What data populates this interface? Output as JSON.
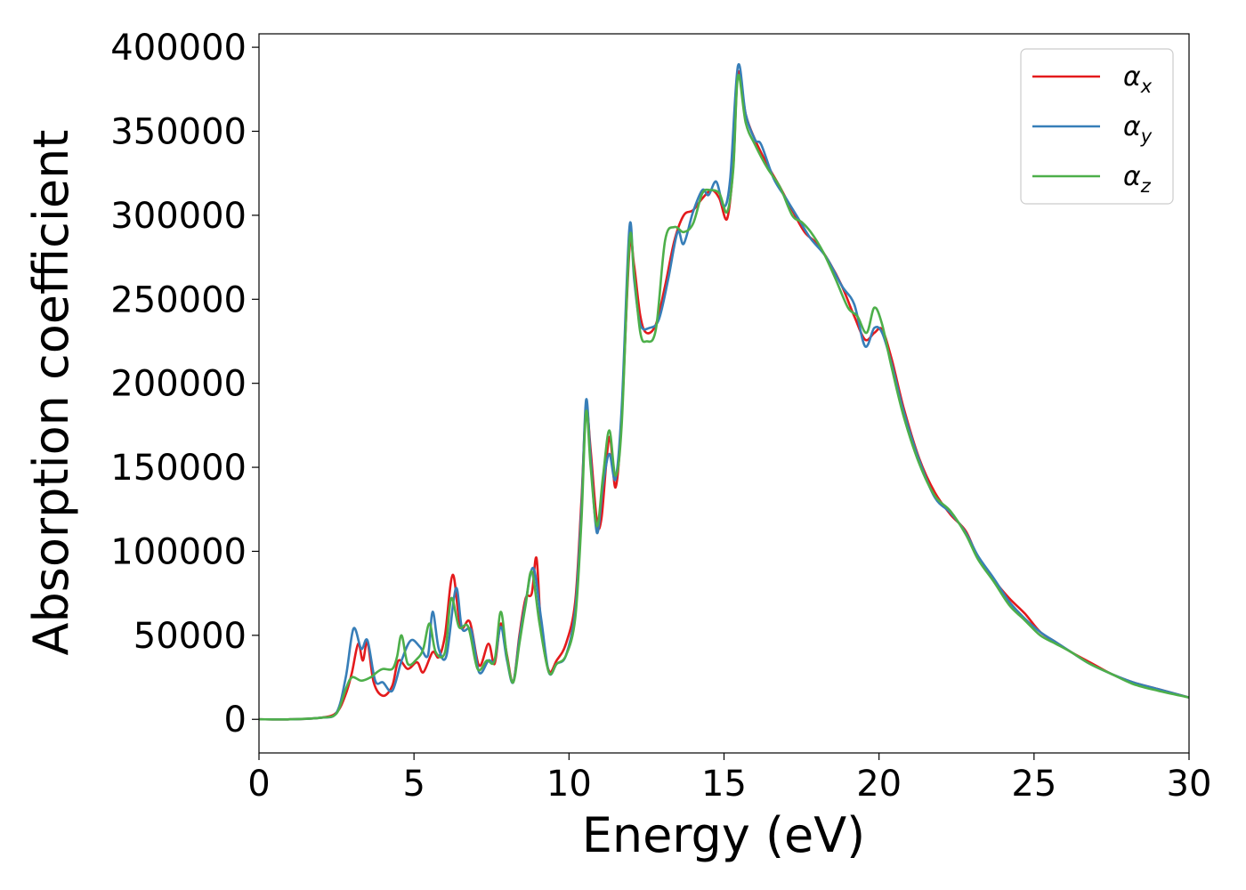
{
  "chart_data": {
    "type": "line",
    "title": "",
    "xlabel": "Energy (eV)",
    "ylabel": "Absorption coefficient",
    "xlim": [
      0,
      30
    ],
    "ylim": [
      -20000,
      408000
    ],
    "xticks": [
      0,
      5,
      10,
      15,
      20,
      25,
      30
    ],
    "yticks": [
      0,
      50000,
      100000,
      150000,
      200000,
      250000,
      300000,
      350000,
      400000
    ],
    "xtick_labels": [
      "0",
      "5",
      "10",
      "15",
      "20",
      "25",
      "30"
    ],
    "ytick_labels": [
      "0",
      "50000",
      "100000",
      "150000",
      "200000",
      "250000",
      "300000",
      "350000",
      "400000"
    ],
    "grid": false,
    "legend_position": "top-right",
    "series": [
      {
        "name": "α_x",
        "legend_symbol": "α",
        "legend_sub": "x",
        "color": "#e41a1c",
        "points": [
          [
            0,
            0
          ],
          [
            1,
            0
          ],
          [
            2,
            1000
          ],
          [
            2.5,
            4000
          ],
          [
            2.8,
            15000
          ],
          [
            3.0,
            28000
          ],
          [
            3.2,
            45000
          ],
          [
            3.35,
            35000
          ],
          [
            3.5,
            46000
          ],
          [
            3.7,
            22000
          ],
          [
            4.0,
            14000
          ],
          [
            4.3,
            20000
          ],
          [
            4.5,
            35000
          ],
          [
            4.8,
            30000
          ],
          [
            5.1,
            34000
          ],
          [
            5.3,
            28000
          ],
          [
            5.6,
            40000
          ],
          [
            5.8,
            37000
          ],
          [
            6.0,
            50000
          ],
          [
            6.25,
            86000
          ],
          [
            6.5,
            55000
          ],
          [
            6.8,
            58000
          ],
          [
            7.1,
            32000
          ],
          [
            7.4,
            45000
          ],
          [
            7.6,
            33000
          ],
          [
            7.8,
            57000
          ],
          [
            8.0,
            38000
          ],
          [
            8.2,
            22000
          ],
          [
            8.4,
            50000
          ],
          [
            8.6,
            72000
          ],
          [
            8.8,
            75000
          ],
          [
            8.95,
            96000
          ],
          [
            9.1,
            55000
          ],
          [
            9.35,
            29000
          ],
          [
            9.6,
            35000
          ],
          [
            9.9,
            45000
          ],
          [
            10.2,
            70000
          ],
          [
            10.4,
            130000
          ],
          [
            10.55,
            185000
          ],
          [
            10.7,
            160000
          ],
          [
            10.9,
            118000
          ],
          [
            11.05,
            120000
          ],
          [
            11.3,
            168000
          ],
          [
            11.5,
            138000
          ],
          [
            11.7,
            180000
          ],
          [
            11.95,
            280000
          ],
          [
            12.1,
            270000
          ],
          [
            12.3,
            240000
          ],
          [
            12.5,
            230000
          ],
          [
            12.8,
            235000
          ],
          [
            13.1,
            258000
          ],
          [
            13.4,
            285000
          ],
          [
            13.7,
            300000
          ],
          [
            14.0,
            303000
          ],
          [
            14.3,
            310000
          ],
          [
            14.6,
            315000
          ],
          [
            14.85,
            310000
          ],
          [
            15.1,
            298000
          ],
          [
            15.3,
            330000
          ],
          [
            15.45,
            385000
          ],
          [
            15.7,
            360000
          ],
          [
            16.0,
            345000
          ],
          [
            16.4,
            330000
          ],
          [
            16.8,
            317000
          ],
          [
            17.2,
            303000
          ],
          [
            17.6,
            290000
          ],
          [
            18.0,
            283000
          ],
          [
            18.4,
            272000
          ],
          [
            18.8,
            258000
          ],
          [
            19.2,
            240000
          ],
          [
            19.55,
            226000
          ],
          [
            19.85,
            230000
          ],
          [
            20.1,
            232000
          ],
          [
            20.4,
            215000
          ],
          [
            20.8,
            185000
          ],
          [
            21.3,
            155000
          ],
          [
            21.8,
            135000
          ],
          [
            22.3,
            122000
          ],
          [
            22.8,
            112000
          ],
          [
            23.2,
            96000
          ],
          [
            23.7,
            83000
          ],
          [
            24.2,
            72000
          ],
          [
            24.7,
            63000
          ],
          [
            25.2,
            52000
          ],
          [
            25.7,
            46000
          ],
          [
            26.2,
            40000
          ],
          [
            26.8,
            34000
          ],
          [
            27.5,
            27000
          ],
          [
            28.2,
            22000
          ],
          [
            29,
            18000
          ],
          [
            30,
            13000
          ]
        ]
      },
      {
        "name": "α_y",
        "legend_symbol": "α",
        "legend_sub": "y",
        "color": "#377eb8",
        "points": [
          [
            0,
            0
          ],
          [
            1,
            0
          ],
          [
            2,
            1000
          ],
          [
            2.5,
            4000
          ],
          [
            2.8,
            25000
          ],
          [
            3.05,
            54000
          ],
          [
            3.3,
            42000
          ],
          [
            3.5,
            47000
          ],
          [
            3.75,
            23000
          ],
          [
            4.0,
            22000
          ],
          [
            4.3,
            17000
          ],
          [
            4.6,
            35000
          ],
          [
            4.9,
            47000
          ],
          [
            5.2,
            43000
          ],
          [
            5.45,
            38000
          ],
          [
            5.6,
            64000
          ],
          [
            5.8,
            42000
          ],
          [
            6.05,
            38000
          ],
          [
            6.35,
            78000
          ],
          [
            6.55,
            54000
          ],
          [
            6.85,
            53000
          ],
          [
            7.1,
            28000
          ],
          [
            7.4,
            35000
          ],
          [
            7.6,
            35000
          ],
          [
            7.8,
            55000
          ],
          [
            8.0,
            35000
          ],
          [
            8.2,
            22000
          ],
          [
            8.4,
            48000
          ],
          [
            8.6,
            70000
          ],
          [
            8.85,
            90000
          ],
          [
            9.1,
            60000
          ],
          [
            9.35,
            28000
          ],
          [
            9.6,
            33000
          ],
          [
            9.9,
            38000
          ],
          [
            10.2,
            65000
          ],
          [
            10.4,
            125000
          ],
          [
            10.55,
            190000
          ],
          [
            10.7,
            155000
          ],
          [
            10.9,
            111000
          ],
          [
            11.1,
            140000
          ],
          [
            11.3,
            158000
          ],
          [
            11.5,
            143000
          ],
          [
            11.7,
            185000
          ],
          [
            11.95,
            293000
          ],
          [
            12.1,
            262000
          ],
          [
            12.3,
            235000
          ],
          [
            12.6,
            233000
          ],
          [
            12.9,
            238000
          ],
          [
            13.2,
            262000
          ],
          [
            13.5,
            290000
          ],
          [
            13.7,
            283000
          ],
          [
            14.0,
            302000
          ],
          [
            14.3,
            315000
          ],
          [
            14.5,
            312000
          ],
          [
            14.75,
            320000
          ],
          [
            15.0,
            305000
          ],
          [
            15.2,
            322000
          ],
          [
            15.45,
            389000
          ],
          [
            15.7,
            360000
          ],
          [
            16.0,
            345000
          ],
          [
            16.2,
            342000
          ],
          [
            16.6,
            322000
          ],
          [
            17.0,
            310000
          ],
          [
            17.4,
            298000
          ],
          [
            17.8,
            286000
          ],
          [
            18.3,
            275000
          ],
          [
            18.8,
            258000
          ],
          [
            19.2,
            247000
          ],
          [
            19.55,
            222000
          ],
          [
            19.85,
            233000
          ],
          [
            20.1,
            230000
          ],
          [
            20.4,
            212000
          ],
          [
            20.8,
            183000
          ],
          [
            21.3,
            154000
          ],
          [
            21.8,
            132000
          ],
          [
            22.3,
            123000
          ],
          [
            22.8,
            111000
          ],
          [
            23.2,
            97000
          ],
          [
            23.7,
            84000
          ],
          [
            24.2,
            70000
          ],
          [
            24.7,
            60000
          ],
          [
            25.2,
            52000
          ],
          [
            25.7,
            46000
          ],
          [
            26.2,
            40000
          ],
          [
            26.8,
            33000
          ],
          [
            27.5,
            27000
          ],
          [
            28.2,
            22000
          ],
          [
            29,
            18000
          ],
          [
            30,
            13000
          ]
        ]
      },
      {
        "name": "α_z",
        "legend_symbol": "α",
        "legend_sub": "z",
        "color": "#4daf4a",
        "points": [
          [
            0,
            0
          ],
          [
            1,
            0
          ],
          [
            2,
            1000
          ],
          [
            2.5,
            3500
          ],
          [
            2.8,
            18000
          ],
          [
            3.0,
            25000
          ],
          [
            3.3,
            23000
          ],
          [
            3.6,
            25000
          ],
          [
            3.8,
            28000
          ],
          [
            4.0,
            30000
          ],
          [
            4.3,
            30000
          ],
          [
            4.45,
            37000
          ],
          [
            4.6,
            50000
          ],
          [
            4.8,
            33000
          ],
          [
            5.1,
            36000
          ],
          [
            5.3,
            42000
          ],
          [
            5.5,
            57000
          ],
          [
            5.7,
            40000
          ],
          [
            6.0,
            40000
          ],
          [
            6.2,
            72000
          ],
          [
            6.45,
            55000
          ],
          [
            6.75,
            55000
          ],
          [
            7.05,
            30000
          ],
          [
            7.35,
            35000
          ],
          [
            7.6,
            35000
          ],
          [
            7.8,
            64000
          ],
          [
            8.0,
            37000
          ],
          [
            8.2,
            22000
          ],
          [
            8.4,
            45000
          ],
          [
            8.6,
            68000
          ],
          [
            8.8,
            88000
          ],
          [
            9.05,
            57000
          ],
          [
            9.35,
            28000
          ],
          [
            9.6,
            33000
          ],
          [
            9.9,
            38000
          ],
          [
            10.2,
            60000
          ],
          [
            10.4,
            118000
          ],
          [
            10.55,
            183000
          ],
          [
            10.7,
            150000
          ],
          [
            10.9,
            115000
          ],
          [
            11.1,
            145000
          ],
          [
            11.3,
            172000
          ],
          [
            11.5,
            145000
          ],
          [
            11.7,
            175000
          ],
          [
            11.95,
            285000
          ],
          [
            12.1,
            265000
          ],
          [
            12.3,
            230000
          ],
          [
            12.5,
            225000
          ],
          [
            12.8,
            232000
          ],
          [
            13.1,
            285000
          ],
          [
            13.4,
            293000
          ],
          [
            13.7,
            290000
          ],
          [
            14.0,
            295000
          ],
          [
            14.3,
            313000
          ],
          [
            14.55,
            315000
          ],
          [
            14.85,
            313000
          ],
          [
            15.1,
            302000
          ],
          [
            15.3,
            328000
          ],
          [
            15.45,
            383000
          ],
          [
            15.7,
            355000
          ],
          [
            16.0,
            342000
          ],
          [
            16.4,
            328000
          ],
          [
            16.8,
            317000
          ],
          [
            17.2,
            300000
          ],
          [
            17.5,
            296000
          ],
          [
            17.8,
            290000
          ],
          [
            18.2,
            278000
          ],
          [
            18.6,
            262000
          ],
          [
            19.0,
            245000
          ],
          [
            19.3,
            240000
          ],
          [
            19.6,
            230000
          ],
          [
            19.85,
            245000
          ],
          [
            20.1,
            235000
          ],
          [
            20.4,
            210000
          ],
          [
            20.8,
            180000
          ],
          [
            21.3,
            152000
          ],
          [
            21.8,
            133000
          ],
          [
            22.3,
            124000
          ],
          [
            22.8,
            110000
          ],
          [
            23.2,
            95000
          ],
          [
            23.7,
            82000
          ],
          [
            24.2,
            68000
          ],
          [
            24.7,
            59000
          ],
          [
            25.2,
            50000
          ],
          [
            25.7,
            45000
          ],
          [
            26.2,
            40000
          ],
          [
            26.8,
            33000
          ],
          [
            27.5,
            27000
          ],
          [
            28.2,
            21000
          ],
          [
            29,
            17000
          ],
          [
            30,
            13000
          ]
        ]
      }
    ]
  }
}
